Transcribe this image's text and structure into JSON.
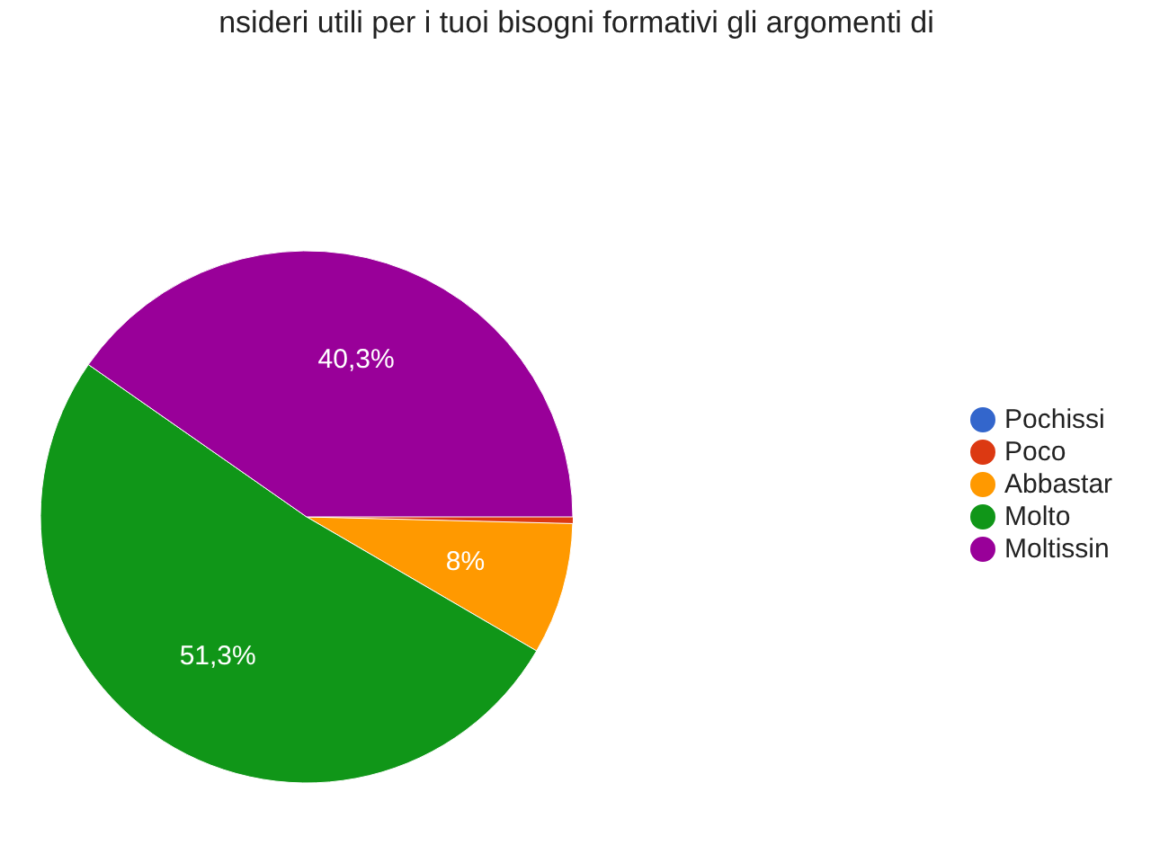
{
  "chart_data": {
    "type": "pie",
    "title": "nsideri utili per i tuoi bisogni formativi gli argomenti di",
    "categories": [
      "Pochissi",
      "Poco",
      "Abbastar",
      "Molto",
      "Moltissin"
    ],
    "values": [
      0,
      0.4,
      8,
      51.3,
      40.3
    ],
    "colors": [
      "#3366cc",
      "#dc3912",
      "#ff9900",
      "#109618",
      "#990099"
    ],
    "value_labels": [
      null,
      null,
      "8%",
      "51,3%",
      "40,3%"
    ],
    "legend": "right"
  }
}
